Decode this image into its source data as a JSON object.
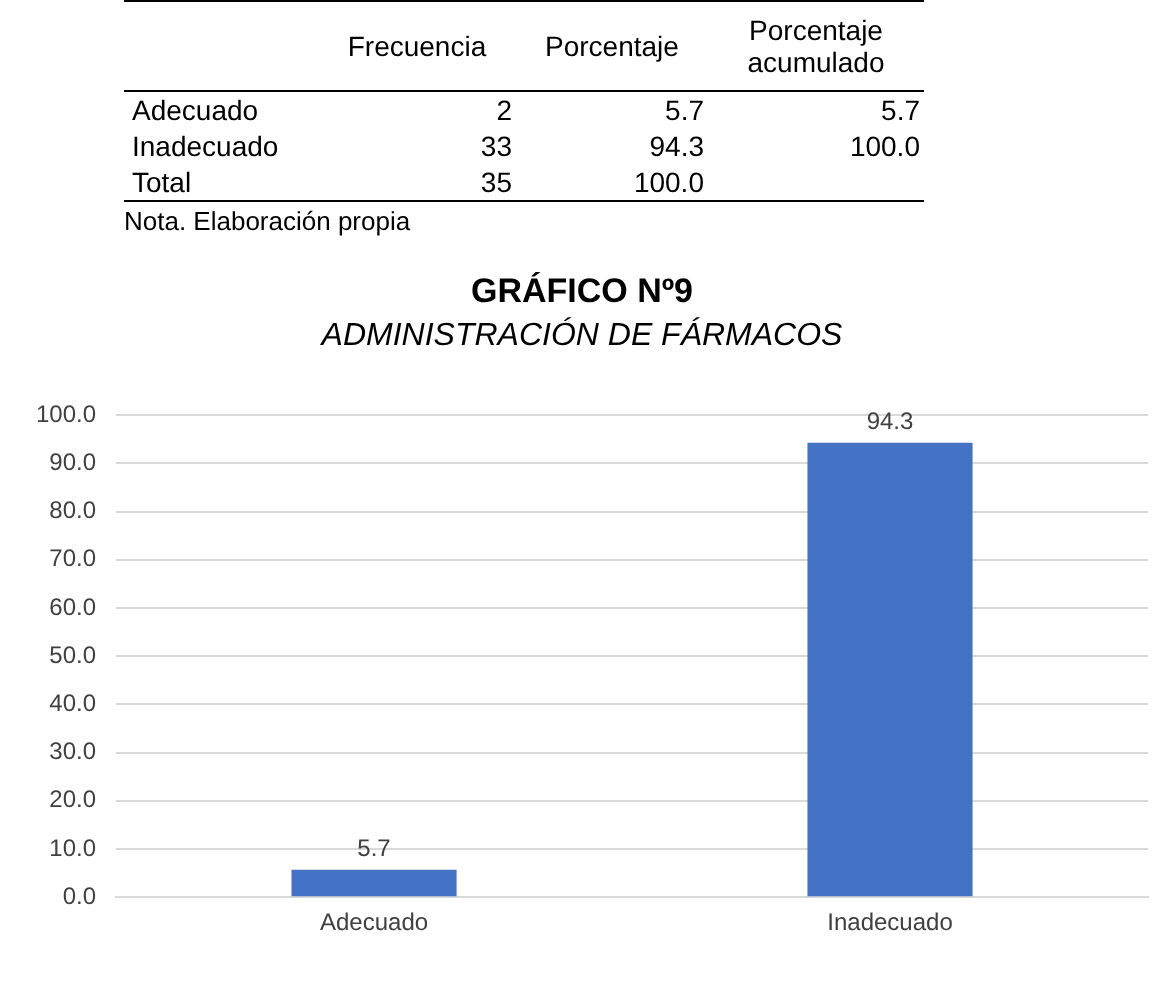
{
  "chart_data": [
    {
      "type": "other",
      "categories": [
        "Adecuado",
        "Inadecuado",
        "Total"
      ],
      "series": [
        {
          "name": "Frecuencia",
          "values": [
            2,
            33,
            35
          ]
        },
        {
          "name": "Porcentaje",
          "values": [
            5.7,
            94.3,
            100.0
          ],
          "value_labels": [
            "5.7",
            "94.3",
            "100.0"
          ]
        },
        {
          "name": "Porcentaje acumulado",
          "values": [
            5.7,
            100.0,
            null
          ],
          "value_labels": [
            "5.7",
            "100.0",
            null
          ]
        }
      ],
      "data_labels": true,
      "annotations": [
        "Nota. Elaboración propia"
      ]
    },
    {
      "type": "bar",
      "title": "GRÁFICO Nº9",
      "subtitle": "ADMINISTRACIÓN DE FÁRMACOS",
      "categories": [
        "Adecuado",
        "Inadecuado"
      ],
      "values": [
        5.7,
        94.3
      ],
      "color": "#4472c4",
      "ylim": [
        0,
        100
      ],
      "yticks": [
        {
          "value": 0,
          "label": "0.0"
        },
        {
          "value": 10,
          "label": "10.0"
        },
        {
          "value": 20,
          "label": "20.0"
        },
        {
          "value": 30,
          "label": "30.0"
        },
        {
          "value": 40,
          "label": "40.0"
        },
        {
          "value": 50,
          "label": "50.0"
        },
        {
          "value": 60,
          "label": "60.0"
        },
        {
          "value": 70,
          "label": "70.0"
        },
        {
          "value": 80,
          "label": "80.0"
        },
        {
          "value": 90,
          "label": "90.0"
        },
        {
          "value": 100,
          "label": "100.0"
        }
      ],
      "grid": "y",
      "data_labels": true
    }
  ]
}
